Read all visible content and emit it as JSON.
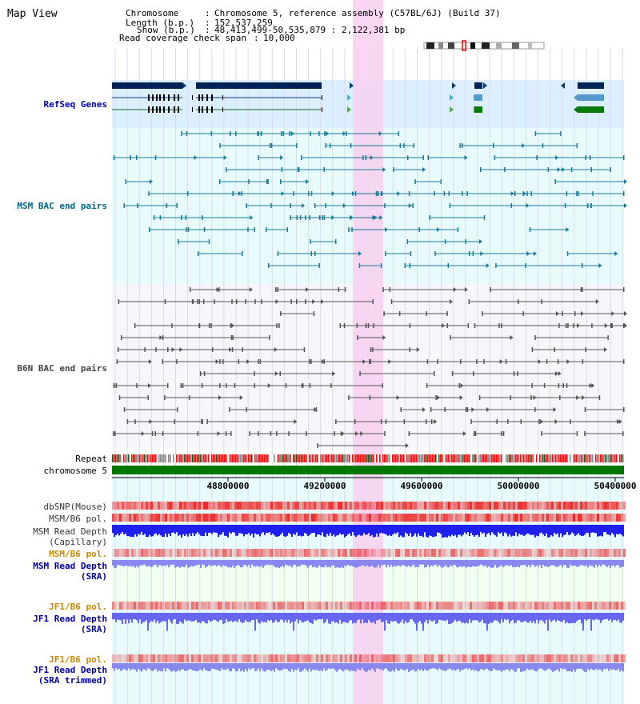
{
  "page": {
    "title": "Map View"
  },
  "header": {
    "chromosome_key": "Chromosome",
    "chromosome_value": "Chromosome 5, reference assembly (C57BL/6J) (Build 37)",
    "length_key": "Length (b.p.)",
    "length_value": "152,537,259",
    "show_key": "Show (b.p.)",
    "show_value": "48,413,499-50,535,879 : 2,122,381 bp",
    "span_key": "Read coverage check span",
    "span_value": "10,000"
  },
  "tracks": {
    "refseq": "RefSeq Genes",
    "msm_bac": "MSM BAC end pairs",
    "b6n_bac": "B6N BAC end pairs",
    "repeat": "Repeat",
    "chromosome": "chromosome 5",
    "dbsnp": "dbSNP(Mouse)",
    "msm_b6_pol": "MSM/B6 pol.",
    "msm_depth_cap_1": "MSM Read Depth",
    "msm_depth_cap_2": "(Capillary)",
    "msm_b6_pol_sra": "MSM/B6 pol.",
    "msm_depth_sra_1": "MSM Read Depth",
    "msm_depth_sra_2": "(SRA)",
    "jf1_b6_pol": "JF1/B6 pol.",
    "jf1_depth_sra_1": "JF1 Read Depth",
    "jf1_depth_sra_2": "(SRA)",
    "jf1_b6_pol_trim": "JF1/B6 pol.",
    "jf1_depth_trim_1": "JF1 Read Depth",
    "jf1_depth_trim_2": "(SRA trimmed)"
  },
  "axis": {
    "ticks": [
      "48800000",
      "49200000",
      "49600000",
      "50000000",
      "50400000"
    ]
  },
  "colors": {
    "refseq_label": "#0000aa",
    "msm_label": "#006688",
    "b6n_label": "#444444",
    "orange_label": "#cc8800",
    "blue_label": "#0000aa",
    "highlight": "#f8d0f0",
    "chrom_bar": "#007700",
    "snp_dark": "#ee2222",
    "snp_light": "#ffb0b0",
    "depth_cap": "#2020ee",
    "depth_sra": "#8888ee"
  }
}
